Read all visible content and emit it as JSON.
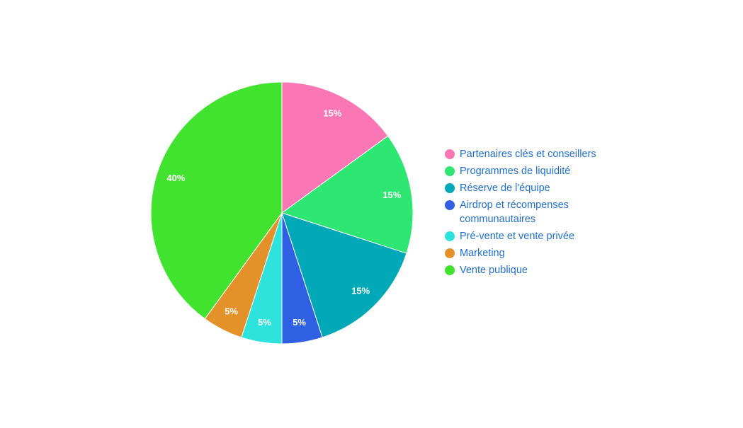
{
  "chart_data": {
    "type": "pie",
    "categories": [
      "Partenaires clés et conseillers",
      "Programmes de liquidité",
      "Réserve de l'équipe",
      "Airdrop et récompenses communautaires",
      "Pré-vente et vente privée",
      "Marketing",
      "Vente publique"
    ],
    "values": [
      15,
      15,
      15,
      5,
      5,
      5,
      40
    ],
    "value_labels": [
      "15%",
      "15%",
      "15%",
      "5%",
      "5%",
      "5%",
      "40%"
    ],
    "colors": [
      "#fb76b4",
      "#2ee672",
      "#00a8b8",
      "#2f5fe3",
      "#2ee3dc",
      "#e3922a",
      "#42e32f"
    ],
    "legend": "right"
  }
}
